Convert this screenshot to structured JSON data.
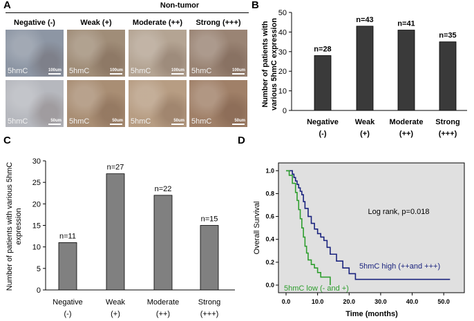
{
  "panels": {
    "a": "A",
    "b": "B",
    "c": "C",
    "d": "D"
  },
  "panel_a": {
    "header": "Non-tumor",
    "columns": [
      "Negative (-)",
      "Weak (+)",
      "Moderate (++)",
      "Strong (+++)"
    ],
    "stain_label": "5hmC",
    "row1_scale": "100um",
    "row2_scale": "50um",
    "tile_colors": [
      [
        "#8d96a4",
        "#a08d78",
        "#b4a493",
        "#9a8474"
      ],
      [
        "#b6b8be",
        "#a98e74",
        "#b79d83",
        "#a08068"
      ]
    ]
  },
  "chart_data": [
    {
      "type": "bar",
      "panel": "B",
      "categories": [
        "Negative (-)",
        "Weak (+)",
        "Moderate (++)",
        "Strong (+++)"
      ],
      "category_lines": [
        [
          "Negative",
          "(-)"
        ],
        [
          "Weak",
          "(+)"
        ],
        [
          "Moderate",
          "(++)"
        ],
        [
          "Strong",
          "(+++)"
        ]
      ],
      "values": [
        28,
        43,
        41,
        35
      ],
      "data_labels": [
        "n=28",
        "n=43",
        "n=41",
        "n=35"
      ],
      "ylabel": [
        "Number of patients with",
        "various 5hmC expression"
      ],
      "ylim": [
        0,
        50
      ],
      "yticks": [
        0,
        10,
        20,
        30,
        40,
        50
      ],
      "bar_color": "#3a3a3a"
    },
    {
      "type": "bar",
      "panel": "C",
      "categories": [
        "Negative (-)",
        "Weak (+)",
        "Moderate (++)",
        "Strong (+++)"
      ],
      "category_lines": [
        [
          "Negative",
          "(-)"
        ],
        [
          "Weak",
          "(+)"
        ],
        [
          "Moderate",
          "(++)"
        ],
        [
          "Strong",
          "(+++)"
        ]
      ],
      "values": [
        11,
        27,
        22,
        15
      ],
      "data_labels": [
        "n=11",
        "n=27",
        "n=22",
        "n=15"
      ],
      "ylabel": [
        "Number of patients with various 5hmC",
        "expression"
      ],
      "ylim": [
        0,
        30
      ],
      "yticks": [
        0,
        5,
        10,
        15,
        20,
        25,
        30
      ],
      "bar_color": "#808080"
    },
    {
      "type": "line",
      "panel": "D",
      "xlabel": "Time (months)",
      "ylabel": "Overall Survival",
      "xlim": [
        0,
        55
      ],
      "ylim": [
        0,
        1.05
      ],
      "xticks": [
        0,
        10,
        20,
        30,
        40,
        50
      ],
      "xtick_labels": [
        "0.0",
        "10.0",
        "20.0",
        "30.0",
        "40.0",
        "50.0"
      ],
      "yticks": [
        0,
        0.2,
        0.4,
        0.6,
        0.8,
        1.0
      ],
      "ytick_labels": [
        "0.0",
        "0.2",
        "0.4",
        "0.6",
        "0.8",
        "1.0"
      ],
      "background": "#e0e0e0",
      "annotation": "Log rank, p=0.018",
      "series": [
        {
          "name": "5hmC high (++and +++)",
          "color": "#1a237e",
          "x": [
            0,
            1,
            2,
            2.5,
            3,
            3.5,
            4,
            4.5,
            5,
            5.5,
            6,
            7,
            8,
            9,
            10,
            11,
            12,
            13,
            14,
            16,
            18,
            20,
            22,
            52
          ],
          "y": [
            1.0,
            1.0,
            0.97,
            0.94,
            0.91,
            0.88,
            0.85,
            0.82,
            0.79,
            0.73,
            0.67,
            0.6,
            0.54,
            0.49,
            0.45,
            0.42,
            0.39,
            0.33,
            0.27,
            0.21,
            0.15,
            0.1,
            0.05,
            0.05
          ]
        },
        {
          "name": "5hmC low (- and +)",
          "color": "#2e9e2e",
          "x": [
            0,
            1,
            2,
            3,
            3.5,
            4,
            4.5,
            5,
            5.5,
            6,
            6.5,
            7,
            8,
            9,
            10,
            11,
            14
          ],
          "y": [
            1.0,
            0.96,
            0.89,
            0.81,
            0.74,
            0.66,
            0.58,
            0.5,
            0.42,
            0.34,
            0.28,
            0.22,
            0.18,
            0.15,
            0.11,
            0.07,
            0.0
          ]
        }
      ]
    }
  ]
}
